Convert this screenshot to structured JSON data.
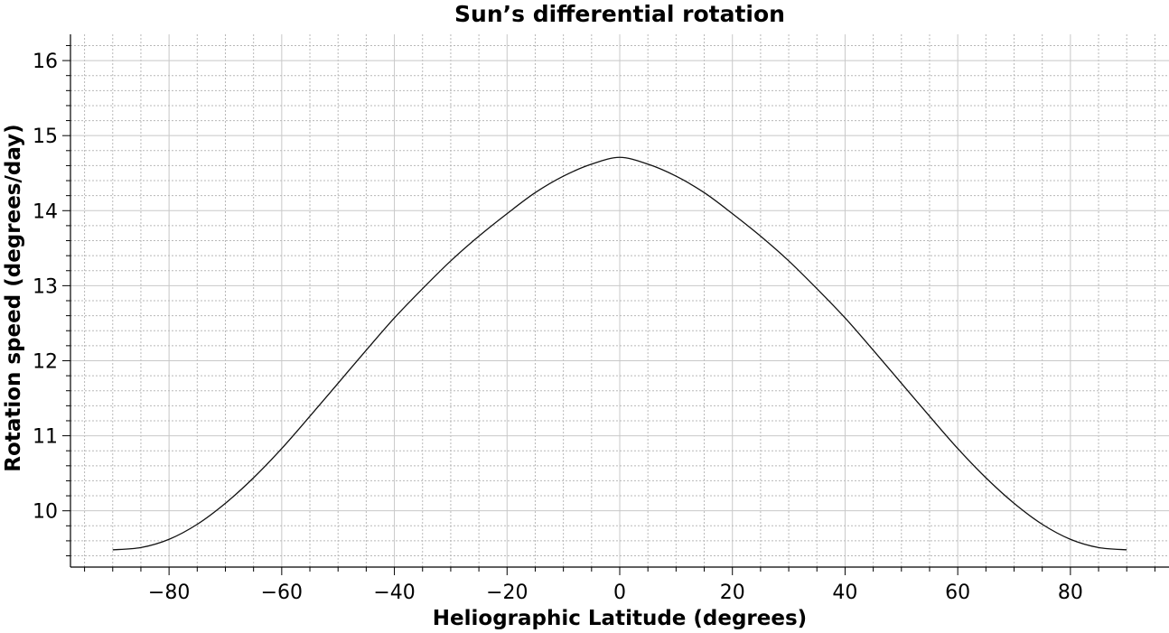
{
  "chart_data": {
    "type": "line",
    "title": "Sun’s differential rotation",
    "xlabel": "Heliographic Latitude (degrees)",
    "ylabel": "Rotation speed (degrees/day)",
    "xlim": [
      -97.5,
      97.5
    ],
    "ylim": [
      9.25,
      16.35
    ],
    "x_ticks": [
      -80,
      -60,
      -40,
      -20,
      0,
      20,
      40,
      60,
      80
    ],
    "x_tick_labels": [
      "−80",
      "−60",
      "−40",
      "−20",
      "0",
      "20",
      "40",
      "60",
      "80"
    ],
    "y_ticks": [
      10,
      11,
      12,
      13,
      14,
      15,
      16
    ],
    "y_tick_labels": [
      "10",
      "11",
      "12",
      "13",
      "14",
      "15",
      "16"
    ],
    "x_minor_step": 5,
    "y_minor_step": 0.2,
    "grid": true,
    "series": [
      {
        "x": [
          -90,
          -85,
          -80,
          -75,
          -70,
          -65,
          -60,
          -55,
          -50,
          -45,
          -40,
          -35,
          -30,
          -25,
          -20,
          -15,
          -10,
          -5,
          0,
          5,
          10,
          15,
          20,
          25,
          30,
          35,
          40,
          45,
          50,
          55,
          60,
          65,
          70,
          75,
          80,
          85,
          90
        ],
        "y": [
          9.48,
          9.51,
          9.62,
          9.82,
          10.1,
          10.44,
          10.83,
          11.26,
          11.7,
          12.14,
          12.57,
          12.96,
          13.33,
          13.66,
          13.96,
          14.24,
          14.46,
          14.62,
          14.71,
          14.62,
          14.46,
          14.24,
          13.96,
          13.66,
          13.33,
          12.96,
          12.57,
          12.14,
          11.7,
          11.26,
          10.83,
          10.44,
          10.1,
          9.82,
          9.62,
          9.51,
          9.48
        ],
        "color": "#111111"
      }
    ]
  }
}
